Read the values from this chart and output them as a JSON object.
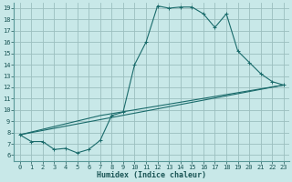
{
  "title": "",
  "xlabel": "Humidex (Indice chaleur)",
  "ylabel": "",
  "xlim": [
    -0.5,
    23.5
  ],
  "ylim": [
    5.5,
    19.5
  ],
  "xticks": [
    0,
    1,
    2,
    3,
    4,
    5,
    6,
    7,
    8,
    9,
    10,
    11,
    12,
    13,
    14,
    15,
    16,
    17,
    18,
    19,
    20,
    21,
    22,
    23
  ],
  "yticks": [
    6,
    7,
    8,
    9,
    10,
    11,
    12,
    13,
    14,
    15,
    16,
    17,
    18,
    19
  ],
  "bg_color": "#c8e8e8",
  "grid_color": "#9bbfbf",
  "line_color": "#1a6b6b",
  "line1_x": [
    0,
    1,
    2,
    3,
    4,
    5,
    6,
    7,
    8,
    9,
    10,
    11,
    12,
    13,
    14,
    15,
    16,
    17,
    18,
    19,
    20,
    21,
    22,
    23
  ],
  "line1_y": [
    7.8,
    7.2,
    7.2,
    6.5,
    6.6,
    6.2,
    6.5,
    7.3,
    9.5,
    9.8,
    14.0,
    16.0,
    19.2,
    19.0,
    19.1,
    19.1,
    18.5,
    17.3,
    18.5,
    15.2,
    14.2,
    13.2,
    12.5,
    12.2
  ],
  "line2_x": [
    0,
    7,
    23
  ],
  "line2_y": [
    7.8,
    9.5,
    12.2
  ],
  "line3_x": [
    0,
    23
  ],
  "line3_y": [
    7.8,
    12.2
  ],
  "tick_fontsize": 5,
  "xlabel_fontsize": 6,
  "marker": "+"
}
